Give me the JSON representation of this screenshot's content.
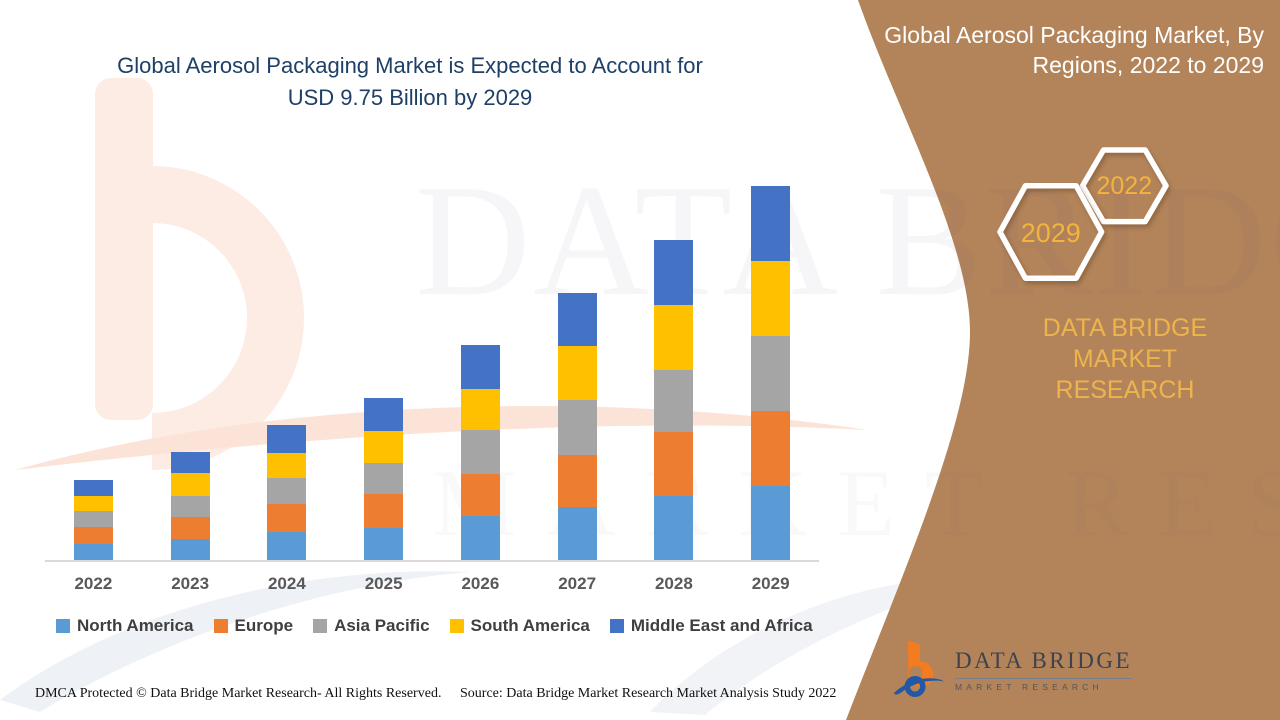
{
  "headline": {
    "line1": "Global Aerosol Packaging Market is Expected to Account for",
    "line2": "USD 9.75 Billion by 2029",
    "color": "#1e3f66"
  },
  "right_panel": {
    "bg_color": "#b3845a",
    "title": "Global Aerosol Packaging Market, By Regions, 2022 to 2029",
    "hexagons": [
      {
        "label": "2022"
      },
      {
        "label": "2029"
      }
    ],
    "hex_text_color": "#f3b33c",
    "caption_line1": "DATA BRIDGE MARKET",
    "caption_line2": "RESEARCH",
    "caption_color": "#edb44e",
    "logo": {
      "name": "DATA BRIDGE",
      "tagline": "MARKET RESEARCH"
    }
  },
  "chart_data": {
    "type": "bar",
    "stacked": true,
    "title": "Global Aerosol Packaging Market is Expected to Account for USD 9.75 Billion by 2029",
    "unit": "USD Billion",
    "categories": [
      "2022",
      "2023",
      "2024",
      "2025",
      "2026",
      "2027",
      "2028",
      "2029"
    ],
    "series": [
      {
        "name": "North America",
        "color": "#5b9bd5",
        "values": [
          0.42,
          0.55,
          0.72,
          0.83,
          1.15,
          1.37,
          1.66,
          1.94
        ]
      },
      {
        "name": "Europe",
        "color": "#ed7d31",
        "values": [
          0.44,
          0.58,
          0.74,
          0.89,
          1.09,
          1.36,
          1.67,
          1.95
        ]
      },
      {
        "name": "Asia Pacific",
        "color": "#a5a5a5",
        "values": [
          0.42,
          0.55,
          0.68,
          0.8,
          1.15,
          1.44,
          1.63,
          1.95
        ]
      },
      {
        "name": "South America",
        "color": "#ffc000",
        "values": [
          0.39,
          0.59,
          0.65,
          0.85,
          1.07,
          1.41,
          1.69,
          1.95
        ]
      },
      {
        "name": "Middle East and Africa",
        "color": "#4472c4",
        "values": [
          0.42,
          0.54,
          0.72,
          0.85,
          1.14,
          1.37,
          1.69,
          1.96
        ]
      }
    ],
    "totals": [
      2.09,
      2.81,
      3.51,
      4.22,
      5.6,
      6.95,
      8.34,
      9.75
    ],
    "ylim": [
      0,
      10
    ],
    "grid": false,
    "legend_position": "bottom",
    "xlabel": "",
    "ylabel": ""
  },
  "watermark": {
    "line1": "DATA BRIDGE",
    "line2": "MARKET RESEARCH"
  },
  "footer": {
    "dmca": "DMCA Protected © Data Bridge Market Research- All Rights Reserved.",
    "source": "Source: Data Bridge Market Research Market Analysis Study 2022"
  }
}
